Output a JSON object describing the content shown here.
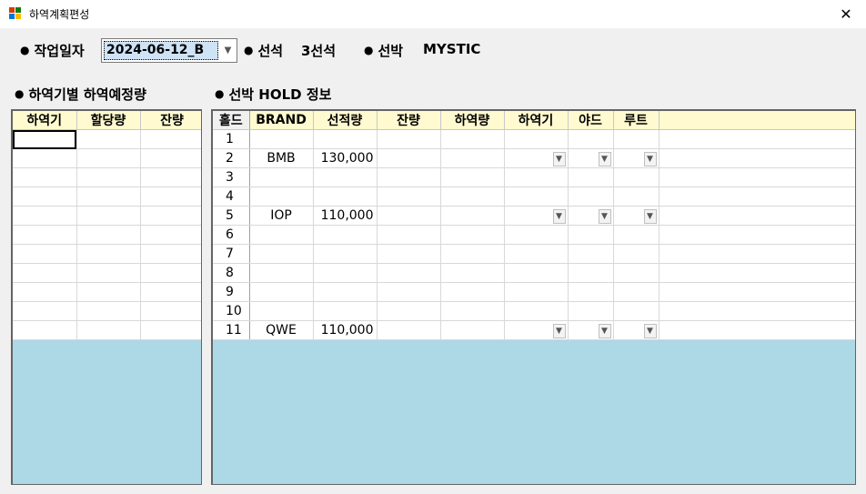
{
  "window": {
    "title": "하역계획편성",
    "close_icon": "close-icon"
  },
  "header": {
    "work_date_label": "작업일자",
    "work_date_value": "2024-06-12_B",
    "berth_label": "선석",
    "berth_value": "3선석",
    "vessel_label": "선박",
    "vessel_value": "MYSTIC"
  },
  "left_panel": {
    "title": "하역기별 하역예정량",
    "columns": [
      "하역기",
      "할당량",
      "잔량"
    ],
    "row_count": 11
  },
  "right_panel": {
    "title": "선박 HOLD 정보",
    "columns": [
      "홀드",
      "BRAND",
      "선적량",
      "잔량",
      "하역량",
      "하역기",
      "야드",
      "루트"
    ],
    "rows": [
      {
        "hold": "1",
        "brand": "",
        "load": "",
        "has_combos": false
      },
      {
        "hold": "2",
        "brand": "BMB",
        "load": "130,000",
        "has_combos": true
      },
      {
        "hold": "3",
        "brand": "",
        "load": "",
        "has_combos": false
      },
      {
        "hold": "4",
        "brand": "",
        "load": "",
        "has_combos": false
      },
      {
        "hold": "5",
        "brand": "IOP",
        "load": "110,000",
        "has_combos": true
      },
      {
        "hold": "6",
        "brand": "",
        "load": "",
        "has_combos": false
      },
      {
        "hold": "7",
        "brand": "",
        "load": "",
        "has_combos": false
      },
      {
        "hold": "8",
        "brand": "",
        "load": "",
        "has_combos": false
      },
      {
        "hold": "9",
        "brand": "",
        "load": "",
        "has_combos": false
      },
      {
        "hold": "10",
        "brand": "",
        "load": "",
        "has_combos": false
      },
      {
        "hold": "11",
        "brand": "QWE",
        "load": "110,000",
        "has_combos": true
      }
    ]
  },
  "colors": {
    "header_bg": "#fffad0",
    "grid_empty_bg": "#add8e6",
    "window_bg": "#f0f0f0",
    "selection_bg": "#cfe3f7"
  }
}
